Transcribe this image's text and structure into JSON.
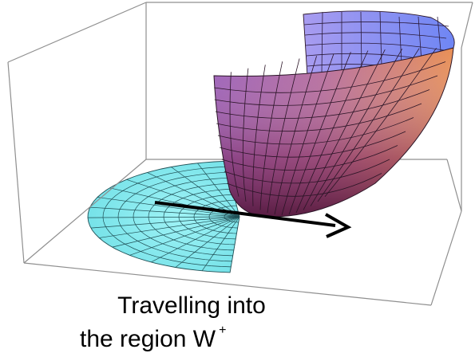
{
  "caption": {
    "line1": "Travelling into",
    "line2": "the region W",
    "superscript": "+"
  },
  "colors": {
    "box_lines": "#8f8f8f",
    "domain_fill": "#7ee8ec",
    "domain_mesh": "#1f4f55",
    "surface_mesh": "#2a1426",
    "surface_low": "#6b2048",
    "surface_mid": "#a25fb2",
    "surface_high": "#e78a55",
    "surface_back": "#8896f2",
    "arrow": "#000000"
  },
  "icons": {
    "arrow": "direction-arrow-icon"
  }
}
